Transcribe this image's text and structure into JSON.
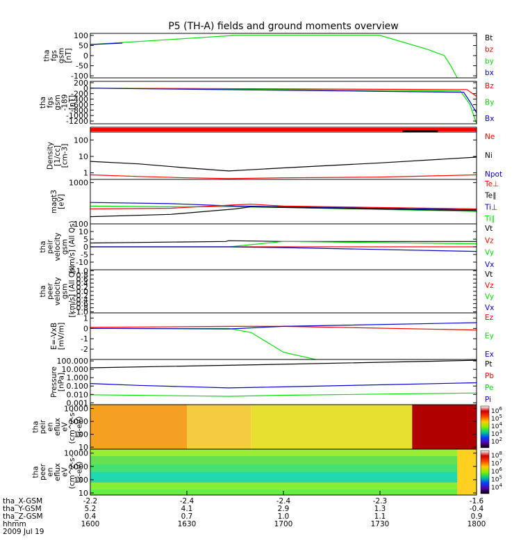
{
  "title": "P5 (TH-A) fields and ground moments overview",
  "date": "2009 Jul 19",
  "x_axis": {
    "ticks": [
      "1600",
      "1630",
      "1700",
      "1730",
      "1800"
    ],
    "rows": [
      {
        "label": "tha_X-GSM",
        "values": [
          "-2.2",
          "-2.4",
          "-2.4",
          "-2.3",
          "-1.6"
        ]
      },
      {
        "label": "tha_Y-GSM",
        "values": [
          "5.2",
          "4.1",
          "2.9",
          "1.3",
          "-0.4"
        ]
      },
      {
        "label": "tha_Z-GSM",
        "values": [
          "0.4",
          "0.7",
          "1.0",
          "1.1",
          "0.9"
        ]
      },
      {
        "label": "hhmm",
        "values": [
          "1600",
          "1630",
          "1700",
          "1730",
          "1800"
        ]
      }
    ]
  },
  "colors": {
    "red": "#ff0000",
    "green": "#00e000",
    "blue": "#0000cc",
    "black": "#000000"
  },
  "chart_data": [
    {
      "type": "line",
      "panel": "fgs",
      "ylabel": [
        "tha",
        "fgs",
        "gsm",
        "[nT]"
      ],
      "ylim": [
        -110,
        110
      ],
      "yticks": [
        {
          "v": 100,
          "t": "100"
        },
        {
          "v": 50,
          "t": "50"
        },
        {
          "v": 0,
          "t": "0"
        },
        {
          "v": -50,
          "t": "-50"
        },
        {
          "v": -100,
          "t": "-100"
        }
      ],
      "legend": [
        {
          "text": "Bt",
          "color": "#000000"
        },
        {
          "text": "bz",
          "color": "#ff0000"
        },
        {
          "text": "by",
          "color": "#00e000"
        },
        {
          "text": "bx",
          "color": "#0000cc"
        }
      ],
      "series": [
        {
          "name": "by",
          "color": "#00e000",
          "x": [
            1600,
            1630,
            1645,
            1715,
            1730,
            1745,
            1750,
            1752,
            1754
          ],
          "y": [
            55,
            85,
            100,
            100,
            100,
            30,
            0,
            -50,
            -110
          ]
        },
        {
          "name": "bx",
          "color": "#0000cc",
          "x": [
            1600,
            1610
          ],
          "y": [
            55,
            62
          ]
        }
      ]
    },
    {
      "type": "line",
      "panel": "fgs_189",
      "ylabel": [
        "tha",
        "fgs",
        "gsm",
        "-189",
        "[nT]"
      ],
      "ylim": [
        -1300,
        250
      ],
      "yticks": [
        {
          "v": 200,
          "t": "200"
        },
        {
          "v": 0,
          "t": "0"
        },
        {
          "v": -200,
          "t": "-200"
        },
        {
          "v": -400,
          "t": "-400"
        },
        {
          "v": -600,
          "t": "-600"
        },
        {
          "v": -800,
          "t": "-800"
        },
        {
          "v": -1000,
          "t": "-1000"
        },
        {
          "v": -1200,
          "t": "-1200"
        }
      ],
      "legend": [
        {
          "text": "Bz",
          "color": "#ff0000"
        },
        {
          "text": "By",
          "color": "#00e000"
        },
        {
          "text": "Bx",
          "color": "#0000cc"
        }
      ],
      "series": [
        {
          "name": "Bz",
          "color": "#ff0000",
          "x": [
            1600,
            1757,
            1760
          ],
          "y": [
            0,
            -50,
            -300
          ]
        },
        {
          "name": "By",
          "color": "#00e000",
          "x": [
            1600,
            1755,
            1758,
            1760
          ],
          "y": [
            0,
            -100,
            -600,
            -1300
          ]
        },
        {
          "name": "Bx",
          "color": "#0000cc",
          "x": [
            1600,
            1756,
            1758,
            1760
          ],
          "y": [
            0,
            -150,
            -500,
            -900
          ]
        }
      ]
    },
    {
      "type": "flag",
      "panel": "mode_bar",
      "segments": [
        {
          "x0": 1600,
          "x1": 1800,
          "color": "#ff0000"
        }
      ],
      "marks": [
        {
          "x0": 1737,
          "x1": 1748,
          "color": "#000000"
        }
      ]
    },
    {
      "type": "line",
      "panel": "density",
      "scale": "log",
      "ylabel": [
        "Density",
        "[1/cc]",
        "[cm-3]"
      ],
      "ylim": [
        0.4,
        300
      ],
      "yticks": [
        {
          "v": 100,
          "t": "100"
        },
        {
          "v": 10,
          "t": "10"
        },
        {
          "v": 1,
          "t": "1"
        }
      ],
      "legend": [
        {
          "text": "Ne",
          "color": "#ff0000"
        },
        {
          "text": "Ni",
          "color": "#000000"
        },
        {
          "text": "Npot",
          "color": "#0000cc"
        }
      ],
      "series": [
        {
          "name": "Ni",
          "color": "#000000",
          "x": [
            1600,
            1615,
            1630,
            1643,
            1700,
            1730,
            1800
          ],
          "y": [
            5,
            3.5,
            2,
            1.3,
            2,
            4,
            9
          ]
        },
        {
          "name": "Ne",
          "color": "#ff0000",
          "x": [
            1600,
            1615,
            1630,
            1643,
            1700,
            1730,
            1800
          ],
          "y": [
            0.75,
            0.6,
            0.5,
            0.45,
            0.5,
            0.55,
            0.75
          ]
        }
      ]
    },
    {
      "type": "line",
      "panel": "temperature",
      "scale": "log",
      "ylabel": [
        "magt3",
        "[eV]"
      ],
      "ylim": [
        100,
        1200
      ],
      "yticks": [
        {
          "v": 1000,
          "t": "1000"
        },
        {
          "v": 100,
          "t": "100"
        }
      ],
      "legend": [
        {
          "text": "Te⊥",
          "color": "#ff0000"
        },
        {
          "text": "Te∥",
          "color": "#000000"
        },
        {
          "text": "Ti⊥",
          "color": "#0000cc"
        },
        {
          "text": "Ti∥",
          "color": "#00e000"
        }
      ],
      "series": [
        {
          "name": "Ti⊥",
          "color": "#0000cc",
          "x": [
            1600,
            1625,
            1645,
            1700,
            1800
          ],
          "y": [
            330,
            310,
            270,
            260,
            220
          ]
        },
        {
          "name": "Ti∥",
          "color": "#00e000",
          "x": [
            1600,
            1625,
            1645,
            1700,
            1800
          ],
          "y": [
            270,
            260,
            260,
            250,
            200
          ]
        },
        {
          "name": "Te⊥",
          "color": "#ff0000",
          "x": [
            1600,
            1625,
            1645,
            1650,
            1700,
            1800
          ],
          "y": [
            230,
            240,
            290,
            300,
            270,
            230
          ]
        },
        {
          "name": "Te∥",
          "color": "#000000",
          "x": [
            1600,
            1625,
            1645,
            1650,
            1700,
            1800
          ],
          "y": [
            150,
            170,
            230,
            260,
            250,
            210
          ]
        }
      ]
    },
    {
      "type": "line",
      "panel": "peir_velocity",
      "ylabel": [
        "tha",
        "peir",
        "velocity",
        "gsm",
        "[km/s] (All Qs)"
      ],
      "ylim": [
        -15,
        15
      ],
      "yticks": [
        {
          "v": 10,
          "t": "10"
        },
        {
          "v": 5,
          "t": "5"
        },
        {
          "v": 0,
          "t": "0"
        },
        {
          "v": -5,
          "t": "-5"
        },
        {
          "v": -10,
          "t": "-10"
        }
      ],
      "legend": [
        {
          "text": "Vt",
          "color": "#000000"
        },
        {
          "text": "Vz",
          "color": "#ff0000"
        },
        {
          "text": "Vy",
          "color": "#00e000"
        },
        {
          "text": "Vx",
          "color": "#0000cc"
        }
      ],
      "series": [
        {
          "name": "Vt",
          "color": "#000000",
          "x": [
            1600,
            1642,
            1643,
            1700,
            1800
          ],
          "y": [
            2.5,
            3.5,
            4,
            3.5,
            3.5
          ]
        },
        {
          "name": "Vz",
          "color": "#ff0000",
          "x": [
            1600,
            1642,
            1643,
            1800
          ],
          "y": [
            0,
            0,
            0,
            0
          ]
        },
        {
          "name": "Vy",
          "color": "#00e000",
          "x": [
            1600,
            1643,
            1700,
            1800
          ],
          "y": [
            0,
            0,
            3.5,
            2
          ]
        },
        {
          "name": "Vx",
          "color": "#0000cc",
          "x": [
            1600,
            1643,
            1700,
            1800
          ],
          "y": [
            0,
            0,
            -0.5,
            -3
          ]
        }
      ]
    },
    {
      "type": "line",
      "panel": "peer_velocity",
      "ylabel": [
        "tha",
        "peer",
        "velocity",
        "gsm",
        "[km/s] (All Qs)"
      ],
      "ylim": [
        -1.05,
        1.05
      ],
      "yticks": [
        {
          "v": 1.0,
          "t": "1.0"
        },
        {
          "v": 0.8,
          "t": "0.8"
        },
        {
          "v": 0.6,
          "t": "0.6"
        },
        {
          "v": 0.4,
          "t": "0.4"
        },
        {
          "v": 0.2,
          "t": "0.2"
        },
        {
          "v": 0.0,
          "t": "0.0"
        },
        {
          "v": -0.2,
          "t": "-0.2"
        },
        {
          "v": -0.4,
          "t": "-0.4"
        },
        {
          "v": -0.6,
          "t": "-0.6"
        },
        {
          "v": -0.8,
          "t": "-0.8"
        },
        {
          "v": -1.0,
          "t": "-1.0"
        }
      ],
      "legend": [
        {
          "text": "Vt",
          "color": "#000000"
        },
        {
          "text": "Vz",
          "color": "#ff0000"
        },
        {
          "text": "Vy",
          "color": "#00e000"
        },
        {
          "text": "Vx",
          "color": "#0000cc"
        }
      ],
      "series": []
    },
    {
      "type": "line",
      "panel": "efield",
      "ylabel": [
        "E=-VxB",
        "[mV/m]"
      ],
      "ylim": [
        -3,
        1.5
      ],
      "yticks": [
        {
          "v": 1,
          "t": "1"
        },
        {
          "v": 0,
          "t": "0"
        },
        {
          "v": -1,
          "t": "-1"
        },
        {
          "v": -2,
          "t": "-2"
        }
      ],
      "legend": [
        {
          "text": "Ez",
          "color": "#ff0000"
        },
        {
          "text": "Ey",
          "color": "#00e000"
        },
        {
          "text": "Ex",
          "color": "#0000cc"
        }
      ],
      "series": [
        {
          "name": "Ez",
          "color": "#ff0000",
          "x": [
            1600,
            1643,
            1700,
            1800
          ],
          "y": [
            0.1,
            0.2,
            0.2,
            -0.15
          ]
        },
        {
          "name": "Ey",
          "color": "#00e000",
          "x": [
            1600,
            1643,
            1650,
            1700,
            1710
          ],
          "y": [
            0,
            0,
            -0.4,
            -2.3,
            -3
          ]
        },
        {
          "name": "Ex",
          "color": "#0000cc",
          "x": [
            1600,
            1643,
            1700,
            1800
          ],
          "y": [
            0,
            -0.05,
            0.2,
            0.55
          ]
        }
      ]
    },
    {
      "type": "line",
      "panel": "pressure",
      "scale": "log",
      "ylabel": [
        "Pressure",
        "[nPa]"
      ],
      "ylim": [
        0.0006,
        150
      ],
      "yticks": [
        {
          "v": 100,
          "t": "100.000"
        },
        {
          "v": 10,
          "t": "10.000"
        },
        {
          "v": 1,
          "t": "1.000"
        },
        {
          "v": 0.1,
          "t": "0.100"
        },
        {
          "v": 0.01,
          "t": "0.010"
        },
        {
          "v": 0.001,
          "t": "0.001"
        }
      ],
      "legend": [
        {
          "text": "Pt",
          "color": "#000000"
        },
        {
          "text": "Pb",
          "color": "#ff0000"
        },
        {
          "text": "Pe",
          "color": "#00e000"
        },
        {
          "text": "Pi",
          "color": "#0000cc"
        }
      ],
      "series": [
        {
          "name": "Pt",
          "color": "#000000",
          "x": [
            1600,
            1700,
            1800
          ],
          "y": [
            15,
            40,
            120
          ]
        },
        {
          "name": "Pi",
          "color": "#0000cc",
          "x": [
            1600,
            1615,
            1643,
            1700,
            1800
          ],
          "y": [
            0.2,
            0.12,
            0.06,
            0.08,
            0.25
          ]
        },
        {
          "name": "Pe",
          "color": "#00e000",
          "x": [
            1600,
            1643,
            1700,
            1800
          ],
          "y": [
            0.009,
            0.006,
            0.008,
            0.015
          ]
        }
      ]
    },
    {
      "type": "heatmap",
      "panel": "peir_spectrogram",
      "scale": "log",
      "ylabel": [
        "tha",
        "peir",
        "en",
        "eflux",
        "eV",
        "(cm^2-s-",
        "sr-eV)"
      ],
      "ylim": [
        7,
        20000
      ],
      "yticks": [
        {
          "v": 10000,
          "t": "10000"
        },
        {
          "v": 1000,
          "t": "1000"
        },
        {
          "v": 100,
          "t": "100"
        },
        {
          "v": 10,
          "t": "10"
        }
      ],
      "colorbar": {
        "labels": [
          "10^6",
          "10^5",
          "10^4",
          "10^3",
          "10^2"
        ]
      },
      "regions": [
        {
          "x0": 1600,
          "x1": 1630,
          "color": "#f5a020"
        },
        {
          "x0": 1630,
          "x1": 1650,
          "color": "#f4cc40"
        },
        {
          "x0": 1650,
          "x1": 1740,
          "color": "#e8e030"
        },
        {
          "x0": 1740,
          "x1": 1800,
          "color": "#b00000"
        }
      ]
    },
    {
      "type": "heatmap",
      "panel": "peer_spectrogram",
      "scale": "log",
      "ylabel": [
        "tha",
        "peer",
        "en",
        "eflux",
        "eV",
        "(cm^2-s-",
        "sr-eV)"
      ],
      "ylim": [
        7,
        20000
      ],
      "yticks": [
        {
          "v": 10000,
          "t": "10000"
        },
        {
          "v": 1000,
          "t": "1000"
        },
        {
          "v": 100,
          "t": "100"
        },
        {
          "v": 10,
          "t": "10"
        }
      ],
      "colorbar": {
        "labels": [
          "10^8",
          "10^7",
          "10^6",
          "10^5",
          "10^4"
        ]
      },
      "bands": [
        {
          "y0": 7,
          "y1": 20,
          "color": "#66ee44"
        },
        {
          "y0": 20,
          "y1": 60,
          "color": "#88ee33"
        },
        {
          "y0": 60,
          "y1": 400,
          "color": "#22d8b0"
        },
        {
          "y0": 400,
          "y1": 1500,
          "color": "#44e070"
        },
        {
          "y0": 1500,
          "y1": 6000,
          "color": "#66e050"
        },
        {
          "y0": 6000,
          "y1": 20000,
          "color": "#99ee33"
        }
      ],
      "regions": [
        {
          "x0": 1754,
          "x1": 1800,
          "color": "#ffd020"
        }
      ]
    }
  ]
}
